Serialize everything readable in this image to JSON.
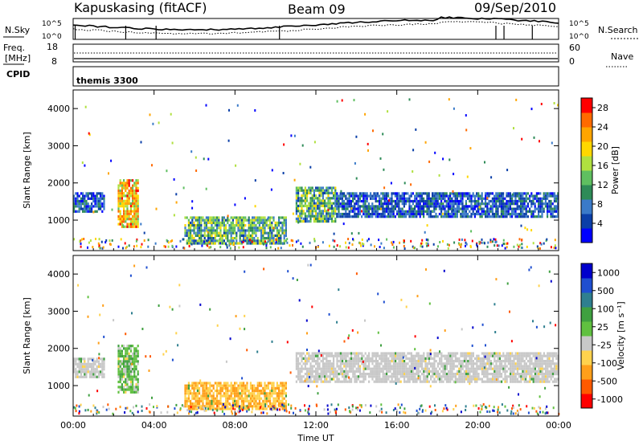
{
  "header": {
    "station": "Kapuskasing (fitACF)",
    "beam": "Beam 09",
    "date": "09/Sep/2010"
  },
  "strip": {
    "noise_left": {
      "label": "N.Sky",
      "ticks": [
        "10^5",
        "10^0"
      ]
    },
    "noise_right": {
      "label": "N.Search",
      "ticks": [
        "10^5",
        "10^0"
      ]
    },
    "freq_left": {
      "label_top": "Freq.",
      "label_bottom": "[MHz]",
      "ticks": [
        "18",
        "8"
      ]
    },
    "nave_right": {
      "label": "Nave",
      "ticks": [
        "60",
        "0"
      ]
    },
    "cpid_label": "CPID",
    "cpid_value": "themis 3300"
  },
  "colors": {
    "power_scale": [
      "#0000ff",
      "#0b3fa8",
      "#3a7ac8",
      "#2e8b57",
      "#5fbf60",
      "#b0e040",
      "#ffd700",
      "#ffa500",
      "#ff6a00",
      "#ff0000"
    ],
    "velocity_scale": [
      "#0000cc",
      "#1f4fd0",
      "#2f7f8f",
      "#3fa040",
      "#60c040",
      "#c8c8c8",
      "#ffd24d",
      "#ff9f1a",
      "#ff5a00",
      "#ff0000"
    ]
  },
  "chart_data": [
    {
      "type": "heatmap",
      "name": "power",
      "ylabel": "Slant Range [km]",
      "ylim": [
        180,
        4500
      ],
      "yticks": [
        "1000",
        "2000",
        "3000",
        "4000"
      ],
      "xlim_hours": [
        0,
        24
      ],
      "xticks": [
        "00:00",
        "04:00",
        "08:00",
        "12:00",
        "16:00",
        "20:00",
        "00:00"
      ],
      "colorbar": {
        "label": "Power [dB]",
        "ticks": [
          "4",
          "8",
          "12",
          "16",
          "20",
          "24",
          "28"
        ],
        "range": [
          0,
          30
        ]
      },
      "features": [
        {
          "hours": [
            0.0,
            1.5
          ],
          "range_km": [
            1200,
            1750
          ],
          "level": "low"
        },
        {
          "hours": [
            2.2,
            3.2
          ],
          "range_km": [
            800,
            2100
          ],
          "level": "high"
        },
        {
          "hours": [
            5.5,
            10.5
          ],
          "range_km": [
            400,
            1100
          ],
          "level": "mid"
        },
        {
          "hours": [
            11.0,
            13.0
          ],
          "range_km": [
            1000,
            1900
          ],
          "level": "mid"
        },
        {
          "hours": [
            13.0,
            24.0
          ],
          "range_km": [
            1100,
            1750
          ],
          "level": "low"
        }
      ]
    },
    {
      "type": "heatmap",
      "name": "velocity",
      "ylabel": "Slant Range [km]",
      "ylim": [
        180,
        4500
      ],
      "yticks": [
        "1000",
        "2000",
        "3000",
        "4000"
      ],
      "xlim_hours": [
        0,
        24
      ],
      "xticks": [
        "00:00",
        "04:00",
        "08:00",
        "12:00",
        "16:00",
        "20:00",
        "00:00"
      ],
      "xlabel": "Time UT",
      "colorbar": {
        "label": "Velocity [m s⁻¹]",
        "ticks": [
          "1000",
          "500",
          "100",
          "25",
          "-25",
          "-100",
          "-500",
          "-1000"
        ]
      },
      "features": [
        {
          "hours": [
            0.0,
            1.5
          ],
          "range_km": [
            1200,
            1750
          ],
          "level": "near-zero"
        },
        {
          "hours": [
            2.2,
            3.2
          ],
          "range_km": [
            800,
            2100
          ],
          "level": "slightly-positive"
        },
        {
          "hours": [
            5.5,
            10.5
          ],
          "range_km": [
            400,
            1100
          ],
          "level": "negative"
        },
        {
          "hours": [
            11.0,
            24.0
          ],
          "range_km": [
            1100,
            1900
          ],
          "level": "near-zero"
        }
      ]
    }
  ]
}
